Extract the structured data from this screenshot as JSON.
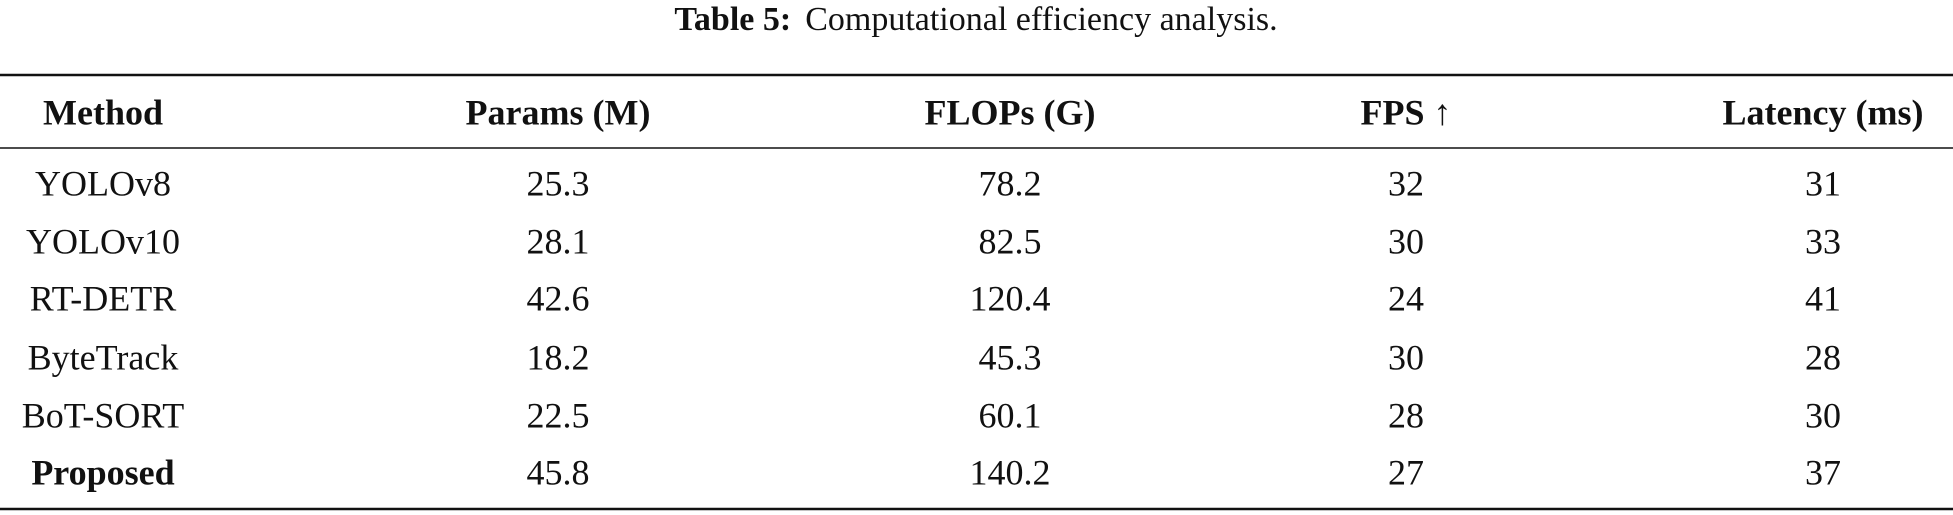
{
  "caption": {
    "label": "Table 5:",
    "text": "Computational efficiency analysis."
  },
  "table": {
    "header": [
      "Method",
      "Params (M)",
      "FLOPs (G)",
      "FPS ↑",
      "Latency (ms)"
    ],
    "rows": [
      [
        "YOLOv8",
        25.3,
        78.2,
        32,
        31
      ],
      [
        "YOLOv10",
        28.1,
        82.5,
        30,
        33
      ],
      [
        "RT-DETR",
        42.6,
        120.4,
        24,
        41
      ],
      [
        "ByteTrack",
        18.2,
        45.3,
        30,
        28
      ],
      [
        "BoT-SORT",
        22.5,
        60.1,
        28,
        30
      ],
      [
        "Proposed",
        45.8,
        140.2,
        27,
        37
      ]
    ]
  }
}
